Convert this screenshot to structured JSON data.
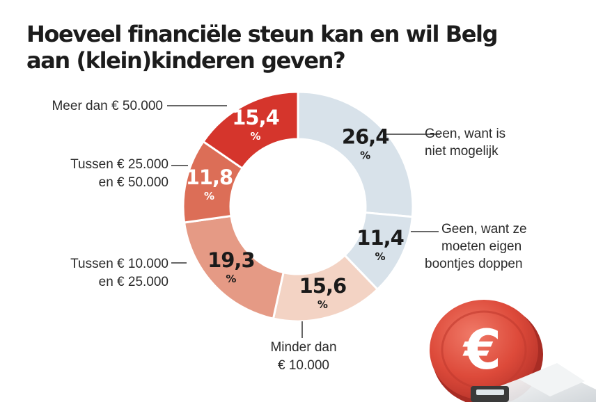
{
  "title": {
    "line1": "Hoeveel financiële steun kan en wil Belg",
    "line2": "aan (klein)kinderen geven?"
  },
  "chart_data": {
    "type": "pie",
    "donut": true,
    "unit": "%",
    "slices": [
      {
        "label_lines": [
          "Geen, want is",
          "niet mogelijk"
        ],
        "value": 26.4,
        "display": "26,4",
        "color": "#d8e2ea",
        "text_color": "#1a1a1a"
      },
      {
        "label_lines": [
          "Geen, want ze",
          "moeten eigen",
          "boontjes doppen"
        ],
        "value": 11.4,
        "display": "11,4",
        "color": "#d8e2ea",
        "text_color": "#1a1a1a"
      },
      {
        "label_lines": [
          "Minder dan",
          "€ 10.000"
        ],
        "value": 15.6,
        "display": "15,6",
        "color": "#f3d3c4",
        "text_color": "#1a1a1a"
      },
      {
        "label_lines": [
          "Tussen € 10.000",
          "en € 25.000"
        ],
        "value": 19.3,
        "display": "19,3",
        "color": "#e59a85",
        "text_color": "#1a1a1a"
      },
      {
        "label_lines": [
          "Tussen € 25.000",
          "en € 50.000"
        ],
        "value": 11.8,
        "display": "11,8",
        "color": "#dc6e57",
        "text_color": "#ffffff"
      },
      {
        "label_lines": [
          "Meer dan € 50.000"
        ],
        "value": 15.4,
        "display": "15,4",
        "color": "#d5352c",
        "text_color": "#ffffff"
      }
    ]
  },
  "decoration": {
    "coin_icon": "euro-coin-icon",
    "coin_color": "#dd4a3a"
  }
}
